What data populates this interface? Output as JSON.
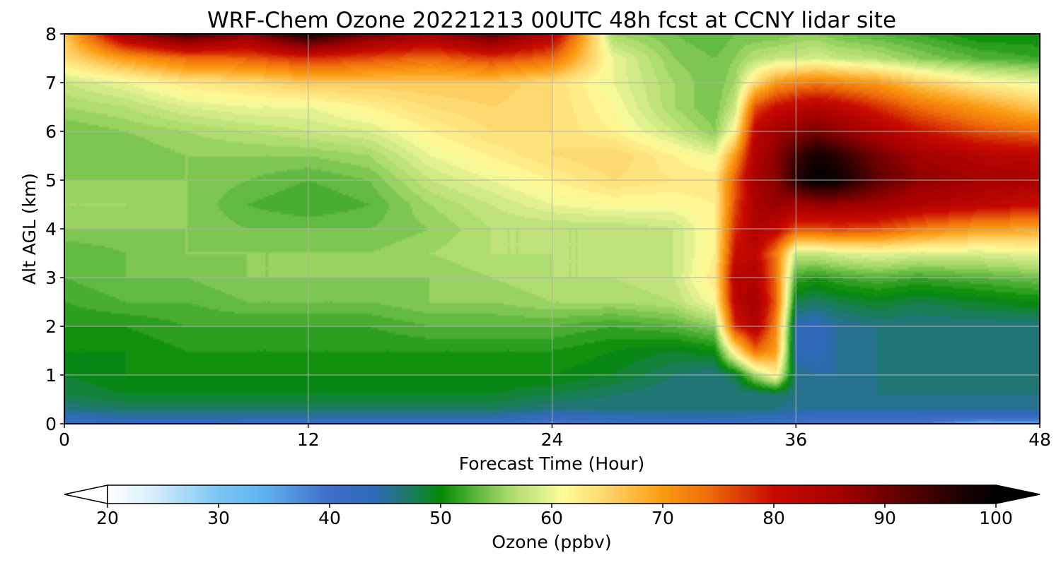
{
  "chart_data": {
    "type": "heatmap",
    "title": "WRF-Chem Ozone  20221213 00UTC 48h fcst at CCNY lidar site",
    "xlabel": "Forecast Time (Hour)",
    "ylabel": "Alt AGL (km)",
    "xlim": [
      0,
      48
    ],
    "ylim": [
      0,
      8
    ],
    "x_ticks": [
      "0",
      "12",
      "24",
      "36",
      "48"
    ],
    "y_ticks": [
      "0",
      "1",
      "2",
      "3",
      "4",
      "5",
      "6",
      "7",
      "8"
    ],
    "grid": true,
    "x": [
      0,
      3,
      6,
      9,
      12,
      15,
      18,
      21,
      24,
      27,
      30,
      32,
      33,
      34,
      35,
      36,
      37,
      38,
      40,
      42,
      45,
      48
    ],
    "y": [
      0,
      0.1,
      0.3,
      0.6,
      1.0,
      1.5,
      2.0,
      2.5,
      3.0,
      3.5,
      4.0,
      4.5,
      5.0,
      5.5,
      6.0,
      6.5,
      7.0,
      7.5,
      8.0
    ],
    "z": [
      [
        42,
        42,
        42,
        41,
        41,
        41,
        41,
        41,
        38,
        40,
        41,
        40,
        40,
        40,
        40,
        40,
        40,
        40,
        40,
        40,
        34,
        35
      ],
      [
        43,
        44,
        44,
        44,
        44,
        44,
        44,
        44,
        42,
        43,
        44,
        44,
        44,
        43,
        43,
        42,
        41,
        41,
        41,
        41,
        40,
        40
      ],
      [
        46,
        47,
        47,
        47,
        47,
        47,
        47,
        47,
        46,
        46,
        46,
        46,
        46,
        46,
        46,
        45,
        45,
        45,
        45,
        45,
        45,
        45
      ],
      [
        48,
        49,
        49,
        49,
        49,
        49,
        49,
        49,
        48,
        47,
        46,
        46,
        46,
        46,
        47,
        46,
        46,
        46,
        46,
        46,
        46,
        46
      ],
      [
        49,
        50,
        50,
        50,
        50,
        50,
        50,
        50,
        50,
        49,
        47,
        46,
        48,
        56,
        62,
        46,
        45,
        45,
        46,
        46,
        46,
        46
      ],
      [
        50,
        50,
        51,
        51,
        51,
        51,
        51,
        51,
        51,
        50,
        49,
        50,
        63,
        74,
        70,
        44,
        43,
        45,
        46,
        46,
        46,
        46
      ],
      [
        51,
        51,
        52,
        52,
        52,
        52,
        53,
        53,
        53,
        52,
        53,
        55,
        78,
        84,
        72,
        44,
        43,
        45,
        46,
        46,
        46,
        46
      ],
      [
        52,
        53,
        53,
        54,
        54,
        54,
        55,
        55,
        56,
        56,
        57,
        61,
        82,
        86,
        75,
        48,
        47,
        48,
        49,
        48,
        49,
        50
      ],
      [
        53,
        54,
        54,
        55,
        55,
        55,
        55,
        56,
        57,
        57,
        58,
        63,
        83,
        84,
        74,
        52,
        51,
        52,
        53,
        52,
        53,
        54
      ],
      [
        53,
        54,
        55,
        55,
        55,
        55,
        56,
        57,
        57,
        57,
        58,
        62,
        80,
        82,
        73,
        58,
        58,
        59,
        60,
        59,
        59,
        60
      ],
      [
        55,
        55,
        55,
        54,
        54,
        54,
        55,
        57,
        57,
        57,
        58,
        62,
        78,
        84,
        82,
        76,
        76,
        77,
        76,
        73,
        70,
        69
      ],
      [
        56,
        56,
        55,
        53,
        52,
        53,
        56,
        58,
        60,
        61,
        61,
        62,
        76,
        85,
        87,
        86,
        87,
        87,
        86,
        84,
        82,
        80
      ],
      [
        55,
        55,
        55,
        54,
        53,
        54,
        58,
        60,
        62,
        64,
        63,
        63,
        75,
        86,
        88,
        96,
        100,
        99,
        92,
        88,
        86,
        85
      ],
      [
        54,
        54,
        55,
        55,
        55,
        56,
        60,
        62,
        64,
        65,
        62,
        60,
        70,
        84,
        88,
        94,
        98,
        96,
        90,
        86,
        83,
        82
      ],
      [
        54,
        55,
        56,
        57,
        58,
        59,
        62,
        64,
        64,
        62,
        58,
        55,
        62,
        82,
        86,
        88,
        90,
        88,
        84,
        80,
        76,
        74
      ],
      [
        56,
        57,
        59,
        60,
        60,
        62,
        64,
        65,
        64,
        61,
        56,
        54,
        58,
        76,
        80,
        82,
        83,
        82,
        78,
        74,
        70,
        66
      ],
      [
        58,
        60,
        63,
        64,
        66,
        66,
        66,
        66,
        64,
        60,
        56,
        54,
        56,
        64,
        70,
        72,
        73,
        72,
        70,
        66,
        62,
        60
      ],
      [
        64,
        70,
        74,
        75,
        78,
        76,
        74,
        77,
        74,
        60,
        55,
        54,
        55,
        57,
        58,
        58,
        59,
        58,
        57,
        55,
        53,
        52
      ],
      [
        66,
        86,
        94,
        88,
        98,
        90,
        86,
        92,
        84,
        56,
        54,
        53,
        54,
        54,
        54,
        55,
        55,
        54,
        53,
        52,
        50,
        50
      ]
    ],
    "colorbar": {
      "label": "Ozone  (ppbv)",
      "min": 20,
      "max": 100,
      "ticks": [
        "20",
        "30",
        "40",
        "50",
        "60",
        "70",
        "80",
        "90",
        "100"
      ],
      "extend": "both",
      "stops": [
        {
          "value": 20,
          "color": "#ffffff"
        },
        {
          "value": 24,
          "color": "#d6eefb"
        },
        {
          "value": 30,
          "color": "#7ac6f3"
        },
        {
          "value": 34,
          "color": "#5fb3ee"
        },
        {
          "value": 40,
          "color": "#3f6dc8"
        },
        {
          "value": 44,
          "color": "#2e6ab8"
        },
        {
          "value": 47,
          "color": "#1d7a68"
        },
        {
          "value": 50,
          "color": "#058a05"
        },
        {
          "value": 53,
          "color": "#55b43a"
        },
        {
          "value": 56,
          "color": "#a5d868"
        },
        {
          "value": 59,
          "color": "#d8ee8c"
        },
        {
          "value": 61,
          "color": "#fffb9a"
        },
        {
          "value": 65,
          "color": "#fed46b"
        },
        {
          "value": 70,
          "color": "#fb9a10"
        },
        {
          "value": 74,
          "color": "#ef6e0c"
        },
        {
          "value": 80,
          "color": "#c80a00"
        },
        {
          "value": 86,
          "color": "#a40000"
        },
        {
          "value": 92,
          "color": "#5a0000"
        },
        {
          "value": 97,
          "color": "#1a0000"
        },
        {
          "value": 100,
          "color": "#000000"
        }
      ]
    }
  }
}
